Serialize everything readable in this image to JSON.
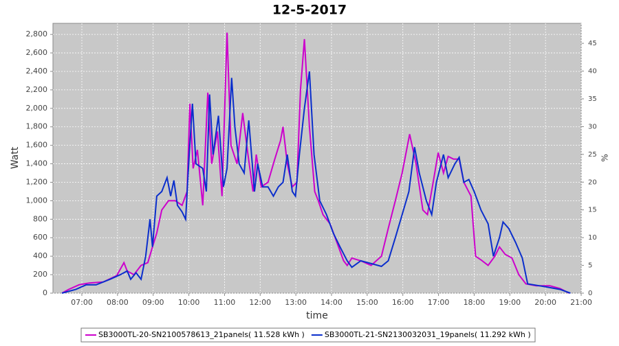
{
  "chart_data": {
    "type": "line",
    "title": "12-5-2017",
    "x_label": "time",
    "y_label": "Watt",
    "y2_label": "%",
    "xlim": [
      6.19,
      21.0
    ],
    "xticks": [
      {
        "value": 7,
        "label": "07:00"
      },
      {
        "value": 8,
        "label": "08:00"
      },
      {
        "value": 9,
        "label": "09:00"
      },
      {
        "value": 10,
        "label": "10:00"
      },
      {
        "value": 11,
        "label": "11:00"
      },
      {
        "value": 12,
        "label": "12:00"
      },
      {
        "value": 13,
        "label": "13:00"
      },
      {
        "value": 14,
        "label": "14:00"
      },
      {
        "value": 15,
        "label": "15:00"
      },
      {
        "value": 16,
        "label": "16:00"
      },
      {
        "value": 17,
        "label": "17:00"
      },
      {
        "value": 18,
        "label": "18:00"
      },
      {
        "value": 19,
        "label": "19:00"
      },
      {
        "value": 20,
        "label": "20:00"
      },
      {
        "value": 21,
        "label": "21:00"
      }
    ],
    "ylim": [
      0,
      2920
    ],
    "yticks": [
      0,
      200,
      400,
      600,
      800,
      {
        "value": 1000,
        "label": "1,000"
      },
      {
        "value": 1200,
        "label": "1,200"
      },
      {
        "value": 1400,
        "label": "1,400"
      },
      {
        "value": 1600,
        "label": "1,600"
      },
      {
        "value": 1800,
        "label": "1,800"
      },
      {
        "value": 2000,
        "label": "2,000"
      },
      {
        "value": 2200,
        "label": "2,200"
      },
      {
        "value": 2400,
        "label": "2,400"
      },
      {
        "value": 2600,
        "label": "2,600"
      },
      {
        "value": 2800,
        "label": "2,800"
      }
    ],
    "y2lim": [
      0,
      48.6
    ],
    "y2ticks": [
      0,
      5,
      10,
      15,
      20,
      25,
      30,
      35,
      40,
      45
    ],
    "grid": true,
    "legend": "bottom",
    "series": [
      {
        "name": "SB3000TL-20-SN2100578613_21panels( 11.528 kWh )",
        "color": "#cc00cc",
        "x": [
          6.44,
          6.63,
          6.92,
          7.21,
          7.6,
          7.98,
          8.18,
          8.27,
          8.46,
          8.66,
          8.85,
          8.98,
          9.1,
          9.24,
          9.43,
          9.62,
          9.81,
          9.95,
          10.03,
          10.12,
          10.24,
          10.39,
          10.53,
          10.64,
          10.8,
          10.93,
          11.07,
          11.18,
          11.35,
          11.51,
          11.64,
          11.8,
          11.89,
          12.03,
          12.22,
          12.41,
          12.57,
          12.64,
          12.76,
          12.9,
          13.03,
          13.13,
          13.24,
          13.38,
          13.53,
          13.63,
          13.76,
          13.96,
          14.15,
          14.34,
          14.44,
          14.57,
          14.82,
          15.11,
          15.4,
          15.59,
          15.79,
          15.98,
          16.19,
          16.37,
          16.56,
          16.69,
          16.85,
          16.99,
          17.14,
          17.27,
          17.42,
          17.58,
          17.71,
          17.91,
          18.04,
          18.19,
          18.39,
          18.58,
          18.71,
          18.87,
          19.06,
          19.25,
          19.45,
          19.74,
          20.12,
          20.41,
          20.66
        ],
        "values": [
          0,
          40,
          90,
          110,
          120,
          190,
          330,
          240,
          200,
          300,
          330,
          500,
          650,
          900,
          1000,
          1000,
          950,
          1100,
          2050,
          1350,
          1550,
          950,
          2170,
          1400,
          1750,
          1050,
          2820,
          1600,
          1400,
          1950,
          1550,
          1100,
          1500,
          1150,
          1200,
          1450,
          1650,
          1800,
          1400,
          1150,
          1200,
          2200,
          2750,
          1800,
          1100,
          1000,
          850,
          750,
          550,
          350,
          300,
          380,
          350,
          300,
          400,
          700,
          1000,
          1300,
          1720,
          1400,
          900,
          850,
          1200,
          1520,
          1300,
          1480,
          1450,
          1450,
          1200,
          1050,
          400,
          360,
          300,
          400,
          500,
          420,
          380,
          200,
          100,
          80,
          80,
          50,
          0
        ]
      },
      {
        "name": "SB3000TL-21-SN2130032031_19panels( 11.292 kWh )",
        "color": "#0a2ecc",
        "x": [
          6.44,
          6.83,
          7.12,
          7.4,
          7.79,
          8.08,
          8.27,
          8.37,
          8.52,
          8.66,
          8.79,
          8.91,
          8.98,
          9.1,
          9.24,
          9.39,
          9.49,
          9.58,
          9.68,
          9.81,
          9.91,
          10.01,
          10.1,
          10.2,
          10.39,
          10.49,
          10.58,
          10.68,
          10.83,
          10.97,
          11.07,
          11.2,
          11.29,
          11.41,
          11.55,
          11.68,
          11.84,
          11.93,
          12.07,
          12.22,
          12.37,
          12.51,
          12.64,
          12.76,
          12.9,
          12.99,
          13.1,
          13.24,
          13.38,
          13.51,
          13.67,
          13.86,
          14.05,
          14.24,
          14.44,
          14.57,
          14.82,
          15.11,
          15.4,
          15.59,
          15.79,
          15.98,
          16.17,
          16.33,
          16.46,
          16.66,
          16.81,
          16.94,
          17.14,
          17.27,
          17.46,
          17.58,
          17.71,
          17.85,
          18.0,
          18.19,
          18.39,
          18.54,
          18.71,
          18.81,
          18.97,
          19.16,
          19.35,
          19.5,
          19.82,
          20.12,
          20.41,
          20.7
        ],
        "values": [
          0,
          40,
          90,
          90,
          150,
          200,
          240,
          150,
          220,
          150,
          400,
          800,
          500,
          1050,
          1100,
          1250,
          1050,
          1220,
          950,
          880,
          800,
          1500,
          2050,
          1400,
          1350,
          1100,
          2150,
          1500,
          1920,
          1150,
          1350,
          2330,
          1800,
          1400,
          1300,
          1870,
          1100,
          1400,
          1150,
          1150,
          1050,
          1150,
          1200,
          1500,
          1100,
          1050,
          1500,
          2000,
          2400,
          1500,
          1000,
          850,
          650,
          500,
          350,
          280,
          350,
          320,
          290,
          350,
          600,
          850,
          1100,
          1580,
          1300,
          1000,
          850,
          1200,
          1500,
          1250,
          1400,
          1470,
          1200,
          1230,
          1100,
          900,
          750,
          400,
          600,
          770,
          700,
          550,
          380,
          100,
          80,
          60,
          40,
          0
        ]
      }
    ]
  }
}
